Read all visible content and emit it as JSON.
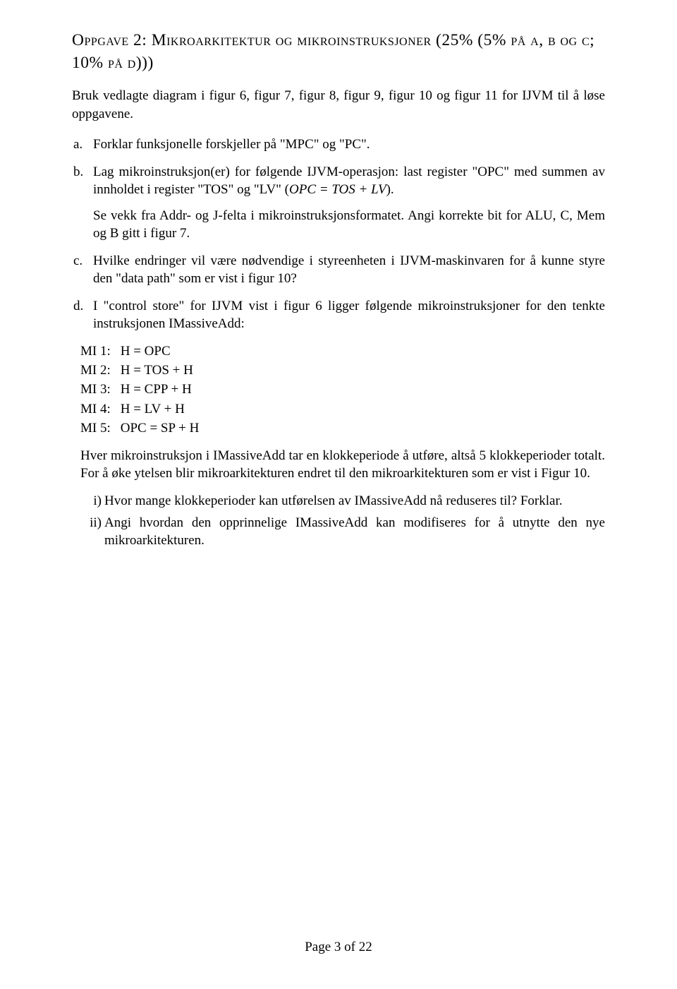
{
  "title": {
    "prefix_sc": "Oppgave",
    "number": " 2: ",
    "main_sc": "Mikroarkitektur og mikroinstruksjoner",
    "weight_open": " (25% (5% ",
    "weight_mid_sc": "på a, b og c",
    "weight_semi": "; 10% ",
    "weight_end_sc": "på d",
    "weight_close": ")))"
  },
  "intro": "Bruk vedlagte diagram i figur 6, figur 7, figur 8, figur 9, figur 10 og figur 11 for IJVM til å løse oppgavene.",
  "items": {
    "a": {
      "marker": "a.",
      "text": "Forklar funksjonelle forskjeller på \"MPC\" og \"PC\"."
    },
    "b": {
      "marker": "b.",
      "p1_before_italic": "Lag mikroinstruksjon(er) for følgende IJVM-operasjon: last register \"OPC\" med summen av innholdet i register \"TOS\" og \"LV\" (",
      "p1_italic": "OPC = TOS + LV",
      "p1_after_italic": ").",
      "p2": "Se vekk fra Addr- og J-felta i mikroinstruksjonsformatet. Angi korrekte bit for ALU, C, Mem og B gitt i figur 7."
    },
    "c": {
      "marker": "c.",
      "text": "Hvilke endringer vil være nødvendige i styreenheten i IJVM-maskinvaren for å kunne styre den \"data path\" som er vist i figur 10?"
    },
    "d": {
      "marker": "d.",
      "text": "I \"control store\" for IJVM vist i figur 6 ligger følgende mikroinstruksjoner for den tenkte instruksjonen IMassiveAdd:"
    }
  },
  "mi": [
    {
      "label": "MI 1:",
      "expr": "H = OPC"
    },
    {
      "label": "MI 2:",
      "expr": "H = TOS + H"
    },
    {
      "label": "MI 3:",
      "expr": "H = CPP + H"
    },
    {
      "label": "MI 4:",
      "expr": "H = LV + H"
    },
    {
      "label": "MI 5:",
      "expr": "OPC = SP + H"
    }
  ],
  "post_d": "Hver mikroinstruksjon i IMassiveAdd tar en klokkeperiode å utføre, altså 5 klokkeperioder totalt. For å øke ytelsen blir mikroarkitekturen endret til den mikroarkitekturen som er vist i Figur 10.",
  "roman": {
    "i": {
      "marker": "i)",
      "text": "Hvor mange klokkeperioder kan utførelsen av IMassiveAdd nå reduseres til? Forklar."
    },
    "ii": {
      "marker": "ii)",
      "text": "Angi hvordan den opprinnelige IMassiveAdd kan modifiseres for å utnytte den nye mikroarkitekturen."
    }
  },
  "footer": "Page 3 of 22"
}
